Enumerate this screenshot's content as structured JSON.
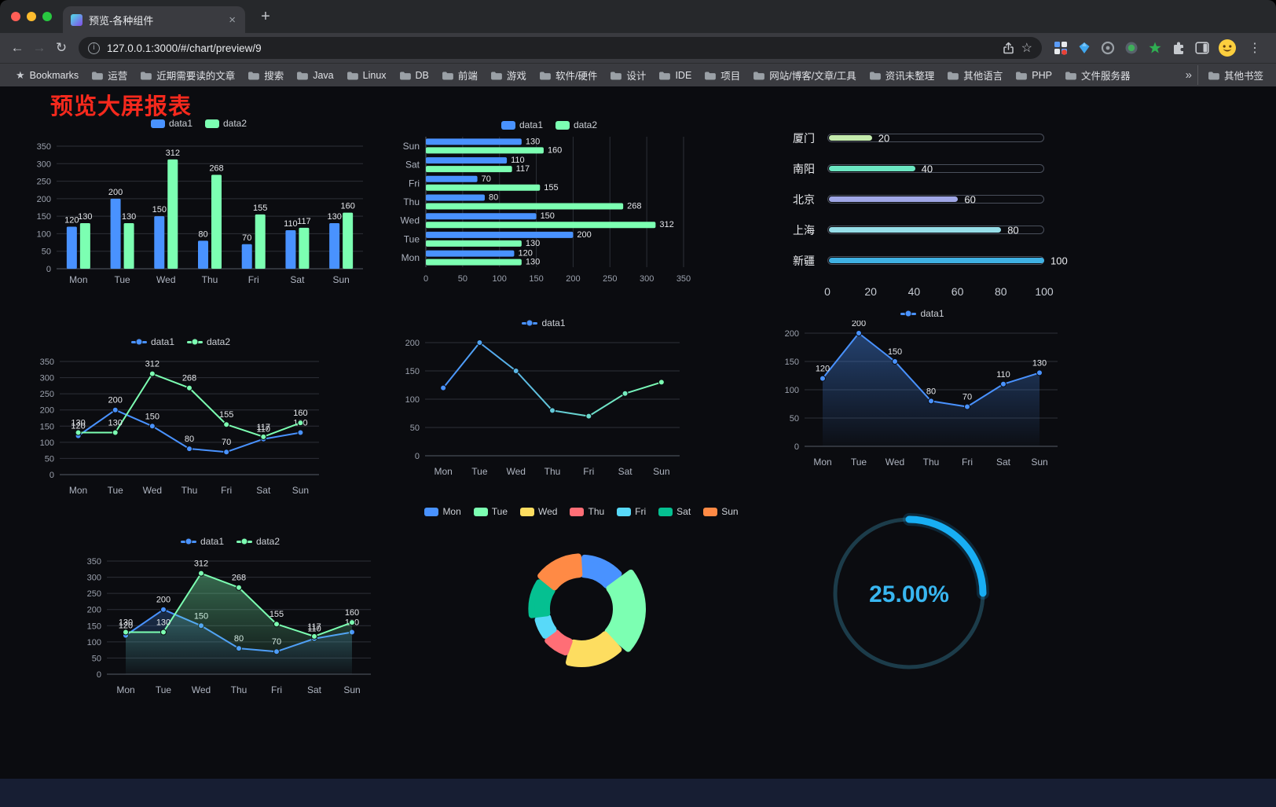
{
  "browser": {
    "tab_title": "预览-各种组件",
    "url": "127.0.0.1:3000/#/chart/preview/9"
  },
  "icons": {
    "back": "←",
    "forward": "→",
    "reload": "↻",
    "close": "×",
    "new_tab": "+",
    "star": "☆",
    "bookmarks_star": "★",
    "menu": "⋮",
    "info": "i"
  },
  "bookmarks_bar": {
    "bookmarks_label": "Bookmarks",
    "items": [
      "运营",
      "近期需要读的文章",
      "搜索",
      "Java",
      "Linux",
      "DB",
      "前端",
      "游戏",
      "软件/硬件",
      "设计",
      "IDE",
      "项目",
      "网站/博客/文章/工具",
      "资讯未整理",
      "其他语言",
      "PHP",
      "文件服务器"
    ],
    "overflow_label": "»",
    "other_bookmarks_label": "其他书签"
  },
  "page": {
    "title": "预览大屏报表",
    "title_color": "#f5291d"
  },
  "chart_data": [
    {
      "id": "bar-grouped",
      "type": "bar",
      "categories": [
        "Mon",
        "Tue",
        "Wed",
        "Thu",
        "Fri",
        "Sat",
        "Sun"
      ],
      "series": [
        {
          "name": "data1",
          "color": "#4992ff",
          "values": [
            120,
            200,
            150,
            80,
            70,
            110,
            130
          ]
        },
        {
          "name": "data2",
          "color": "#7cffb2",
          "values": [
            130,
            130,
            312,
            268,
            155,
            117,
            160
          ]
        }
      ],
      "ylim": [
        0,
        350
      ],
      "ytick_step": 50,
      "legend": {
        "icon": "rect",
        "items": [
          {
            "name": "data1",
            "color": "#4992ff"
          },
          {
            "name": "data2",
            "color": "#7cffb2"
          }
        ]
      }
    },
    {
      "id": "hbar-grouped",
      "type": "hbar",
      "categories": [
        "Mon",
        "Tue",
        "Wed",
        "Thu",
        "Fri",
        "Sat",
        "Sun"
      ],
      "series": [
        {
          "name": "data1",
          "color": "#4992ff",
          "values": [
            120,
            200,
            150,
            80,
            70,
            110,
            130
          ]
        },
        {
          "name": "data2",
          "color": "#7cffb2",
          "values": [
            130,
            130,
            312,
            268,
            155,
            117,
            160
          ]
        }
      ],
      "xlim": [
        0,
        350
      ],
      "xtick_step": 50,
      "legend": {
        "icon": "rect",
        "items": [
          {
            "name": "data1",
            "color": "#4992ff"
          },
          {
            "name": "data2",
            "color": "#7cffb2"
          }
        ]
      }
    },
    {
      "id": "progress-bars",
      "type": "progress",
      "max": 100,
      "rows": [
        {
          "label": "厦门",
          "value": 20,
          "color": "#c4ebad"
        },
        {
          "label": "南阳",
          "value": 40,
          "color": "#6be6c1"
        },
        {
          "label": "北京",
          "value": 60,
          "color": "#a0a7e6"
        },
        {
          "label": "上海",
          "value": 80,
          "color": "#96dee8"
        },
        {
          "label": "新疆",
          "value": 100,
          "color": "#3fb1e3"
        }
      ],
      "axis_ticks": [
        0,
        20,
        40,
        60,
        80,
        100
      ]
    },
    {
      "id": "line-multi",
      "type": "line",
      "categories": [
        "Mon",
        "Tue",
        "Wed",
        "Thu",
        "Fri",
        "Sat",
        "Sun"
      ],
      "series": [
        {
          "name": "data1",
          "color": "#4992ff",
          "values": [
            120,
            200,
            150,
            80,
            70,
            110,
            130
          ]
        },
        {
          "name": "data2",
          "color": "#7cffb2",
          "values": [
            130,
            130,
            312,
            268,
            155,
            117,
            160
          ]
        }
      ],
      "ylim": [
        0,
        350
      ],
      "ytick_step": 50,
      "legend": {
        "icon": "line",
        "items": [
          {
            "name": "data1",
            "color": "#4992ff"
          },
          {
            "name": "data2",
            "color": "#7cffb2"
          }
        ]
      }
    },
    {
      "id": "line-gradient",
      "type": "line",
      "categories": [
        "Mon",
        "Tue",
        "Wed",
        "Thu",
        "Fri",
        "Sat",
        "Sun"
      ],
      "series": [
        {
          "name": "data1",
          "color_gradient": [
            "#4992ff",
            "#7cffb2"
          ],
          "values": [
            120,
            200,
            150,
            80,
            70,
            110,
            130
          ],
          "labels": false
        }
      ],
      "ylim": [
        0,
        200
      ],
      "ytick_step": 50,
      "legend": {
        "icon": "line",
        "items": [
          {
            "name": "data1",
            "color": "#4992ff"
          }
        ]
      }
    },
    {
      "id": "line-area",
      "type": "line",
      "categories": [
        "Mon",
        "Tue",
        "Wed",
        "Thu",
        "Fri",
        "Sat",
        "Sun"
      ],
      "series": [
        {
          "name": "data1",
          "color": "#4992ff",
          "values": [
            120,
            200,
            150,
            80,
            70,
            110,
            130
          ],
          "area": true,
          "area_opacity": 0.4
        }
      ],
      "ylim": [
        0,
        200
      ],
      "ytick_step": 50,
      "legend": {
        "icon": "line",
        "items": [
          {
            "name": "data1",
            "color": "#4992ff"
          }
        ]
      }
    },
    {
      "id": "line-multi-area",
      "type": "line",
      "categories": [
        "Mon",
        "Tue",
        "Wed",
        "Thu",
        "Fri",
        "Sat",
        "Sun"
      ],
      "series": [
        {
          "name": "data1",
          "color": "#4992ff",
          "values": [
            120,
            200,
            150,
            80,
            70,
            110,
            130
          ],
          "area": true,
          "area_opacity": 0.25
        },
        {
          "name": "data2",
          "color": "#7cffb2",
          "values": [
            130,
            130,
            312,
            268,
            155,
            117,
            160
          ],
          "area": true,
          "area_opacity": 0.38
        }
      ],
      "ylim": [
        0,
        350
      ],
      "ytick_step": 50,
      "legend": {
        "icon": "line",
        "items": [
          {
            "name": "data1",
            "color": "#4992ff"
          },
          {
            "name": "data2",
            "color": "#7cffb2"
          }
        ]
      }
    },
    {
      "id": "donut-rose",
      "type": "donut",
      "rose": true,
      "items": [
        {
          "name": "Mon",
          "value": 120,
          "color": "#4992ff"
        },
        {
          "name": "Tue",
          "value": 200,
          "color": "#7cffb2"
        },
        {
          "name": "Wed",
          "value": 150,
          "color": "#fddd60"
        },
        {
          "name": "Thu",
          "value": 80,
          "color": "#ff6e76"
        },
        {
          "name": "Fri",
          "value": 70,
          "color": "#58d9f9"
        },
        {
          "name": "Sat",
          "value": 110,
          "color": "#05c091"
        },
        {
          "name": "Sun",
          "value": 130,
          "color": "#ff8a45"
        }
      ],
      "legend": {
        "icon": "rect",
        "items": [
          {
            "name": "Mon",
            "color": "#4992ff"
          },
          {
            "name": "Tue",
            "color": "#7cffb2"
          },
          {
            "name": "Wed",
            "color": "#fddd60"
          },
          {
            "name": "Thu",
            "color": "#ff6e76"
          },
          {
            "name": "Fri",
            "color": "#58d9f9"
          },
          {
            "name": "Sat",
            "color": "#05c091"
          },
          {
            "name": "Sun",
            "color": "#ff8a45"
          }
        ]
      }
    },
    {
      "id": "gauge-progress",
      "type": "gauge",
      "value": 25,
      "max": 100,
      "display": "25.00%",
      "color": "#18aef3",
      "text_color": "#38b6f0"
    }
  ]
}
